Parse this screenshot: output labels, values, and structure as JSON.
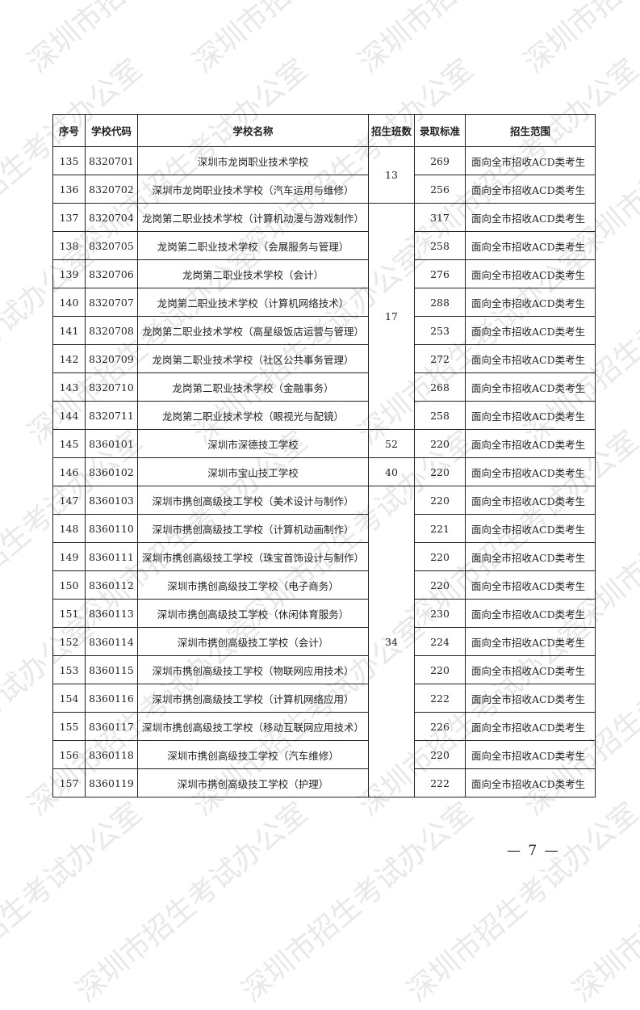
{
  "watermark": "深圳市招生考试办公室",
  "table": {
    "headers": [
      "序号",
      "学校代码",
      "学校名称",
      "招生班数",
      "录取标准",
      "招生范围"
    ],
    "rows": [
      {
        "no": "135",
        "code": "8320701",
        "name": "深圳市龙岗职业技术学校",
        "classes": "13",
        "classes_span": 2,
        "score": "269",
        "scope": "面向全市招收ACD类考生"
      },
      {
        "no": "136",
        "code": "8320702",
        "name": "深圳市龙岗职业技术学校（汽车运用与维修）",
        "score": "256",
        "scope": "面向全市招收ACD类考生"
      },
      {
        "no": "137",
        "code": "8320704",
        "name": "龙岗第二职业技术学校（计算机动漫与游戏制作）",
        "classes": "17",
        "classes_span": 8,
        "score": "317",
        "scope": "面向全市招收ACD类考生"
      },
      {
        "no": "138",
        "code": "8320705",
        "name": "龙岗第二职业技术学校（会展服务与管理）",
        "score": "258",
        "scope": "面向全市招收ACD类考生"
      },
      {
        "no": "139",
        "code": "8320706",
        "name": "龙岗第二职业技术学校（会计）",
        "score": "276",
        "scope": "面向全市招收ACD类考生"
      },
      {
        "no": "140",
        "code": "8320707",
        "name": "龙岗第二职业技术学校（计算机网络技术）",
        "score": "288",
        "scope": "面向全市招收ACD类考生"
      },
      {
        "no": "141",
        "code": "8320708",
        "name": "龙岗第二职业技术学校（高星级饭店运营与管理）",
        "score": "253",
        "scope": "面向全市招收ACD类考生"
      },
      {
        "no": "142",
        "code": "8320709",
        "name": "龙岗第二职业技术学校（社区公共事务管理）",
        "score": "272",
        "scope": "面向全市招收ACD类考生"
      },
      {
        "no": "143",
        "code": "8320710",
        "name": "龙岗第二职业技术学校（金融事务）",
        "score": "268",
        "scope": "面向全市招收ACD类考生"
      },
      {
        "no": "144",
        "code": "8320711",
        "name": "龙岗第二职业技术学校（眼视光与配镜）",
        "score": "258",
        "scope": "面向全市招收ACD类考生"
      },
      {
        "no": "145",
        "code": "8360101",
        "name": "深圳市深德技工学校",
        "classes": "52",
        "classes_span": 1,
        "score": "220",
        "scope": "面向全市招收ACD类考生"
      },
      {
        "no": "146",
        "code": "8360102",
        "name": "深圳市宝山技工学校",
        "classes": "40",
        "classes_span": 1,
        "score": "220",
        "scope": "面向全市招收ACD类考生"
      },
      {
        "no": "147",
        "code": "8360103",
        "name": "深圳市携创高级技工学校（美术设计与制作）",
        "classes": "34",
        "classes_span": 11,
        "score": "220",
        "scope": "面向全市招收ACD类考生"
      },
      {
        "no": "148",
        "code": "8360110",
        "name": "深圳市携创高级技工学校（计算机动画制作）",
        "score": "221",
        "scope": "面向全市招收ACD类考生"
      },
      {
        "no": "149",
        "code": "8360111",
        "name": "深圳市携创高级技工学校（珠宝首饰设计与制作）",
        "score": "220",
        "scope": "面向全市招收ACD类考生"
      },
      {
        "no": "150",
        "code": "8360112",
        "name": "深圳市携创高级技工学校（电子商务）",
        "score": "220",
        "scope": "面向全市招收ACD类考生"
      },
      {
        "no": "151",
        "code": "8360113",
        "name": "深圳市携创高级技工学校（休闲体育服务）",
        "score": "230",
        "scope": "面向全市招收ACD类考生"
      },
      {
        "no": "152",
        "code": "8360114",
        "name": "深圳市携创高级技工学校（会计）",
        "score": "224",
        "scope": "面向全市招收ACD类考生"
      },
      {
        "no": "153",
        "code": "8360115",
        "name": "深圳市携创高级技工学校（物联网应用技术）",
        "score": "220",
        "scope": "面向全市招收ACD类考生"
      },
      {
        "no": "154",
        "code": "8360116",
        "name": "深圳市携创高级技工学校（计算机网络应用）",
        "score": "222",
        "scope": "面向全市招收ACD类考生"
      },
      {
        "no": "155",
        "code": "8360117",
        "name": "深圳市携创高级技工学校（移动互联网应用技术）",
        "score": "226",
        "scope": "面向全市招收ACD类考生"
      },
      {
        "no": "156",
        "code": "8360118",
        "name": "深圳市携创高级技工学校（汽车维修）",
        "score": "220",
        "scope": "面向全市招收ACD类考生"
      },
      {
        "no": "157",
        "code": "8360119",
        "name": "深圳市携创高级技工学校（护理）",
        "score": "222",
        "scope": "面向全市招收ACD类考生"
      }
    ]
  },
  "footer": {
    "page_number": "— 7 —"
  }
}
